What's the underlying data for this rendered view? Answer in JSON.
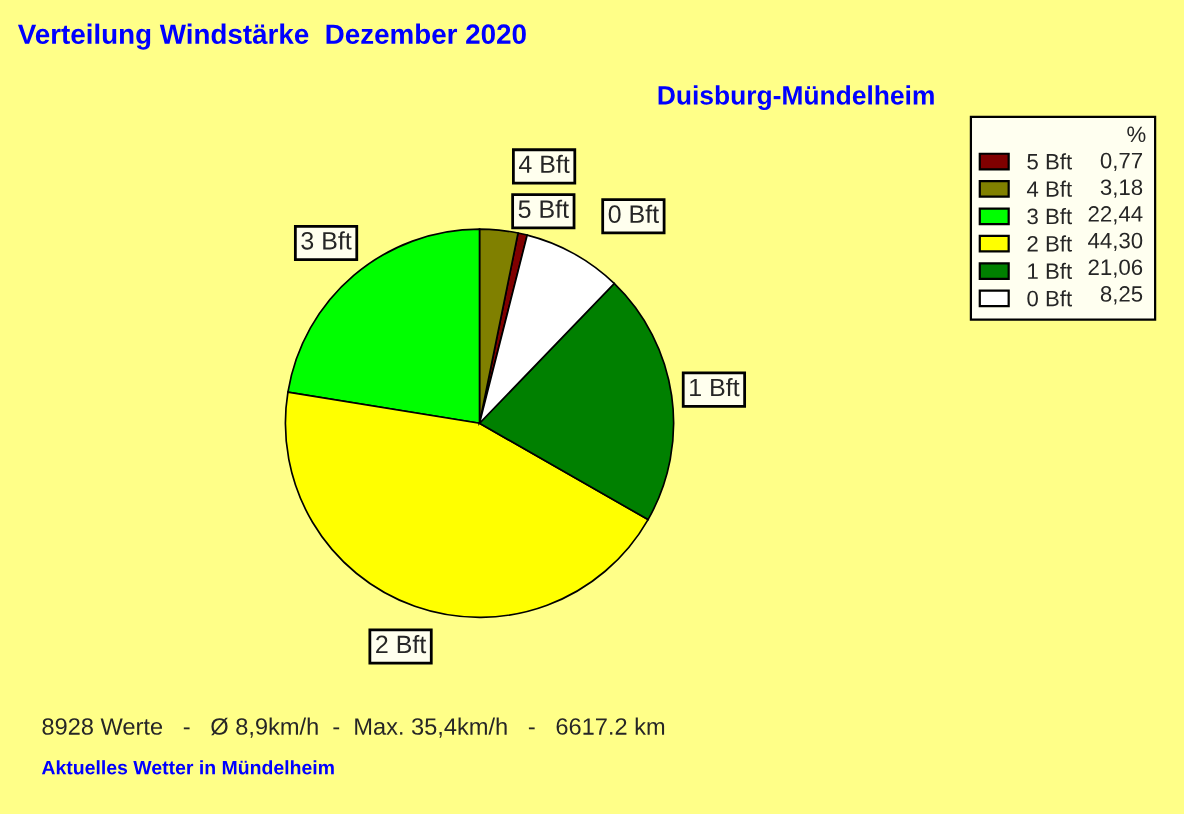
{
  "chart_data": {
    "type": "pie",
    "title": "Verteilung Windstärke  Dezember 2020",
    "subtitle": "Duisburg-Mündelheim",
    "categories": [
      "5 Bft",
      "4 Bft",
      "3 Bft",
      "2 Bft",
      "1 Bft",
      "0 Bft"
    ],
    "values": [
      0.77,
      3.18,
      22.44,
      44.3,
      21.06,
      8.25
    ],
    "value_labels": [
      "0,77",
      "3,18",
      "22,44",
      "44,30",
      "21,06",
      "8,25"
    ],
    "colors": [
      "#800000",
      "#808000",
      "#00ff00",
      "#ffff00",
      "#008000",
      "#ffffff"
    ],
    "legend_title": "%",
    "legend": "right",
    "annotations": [
      "8928 Werte   -   Ø 8,9km/h  -  Max. 35,4km/h   -   6617.2 km",
      "Aktuelles Wetter in Mündelheim"
    ]
  }
}
